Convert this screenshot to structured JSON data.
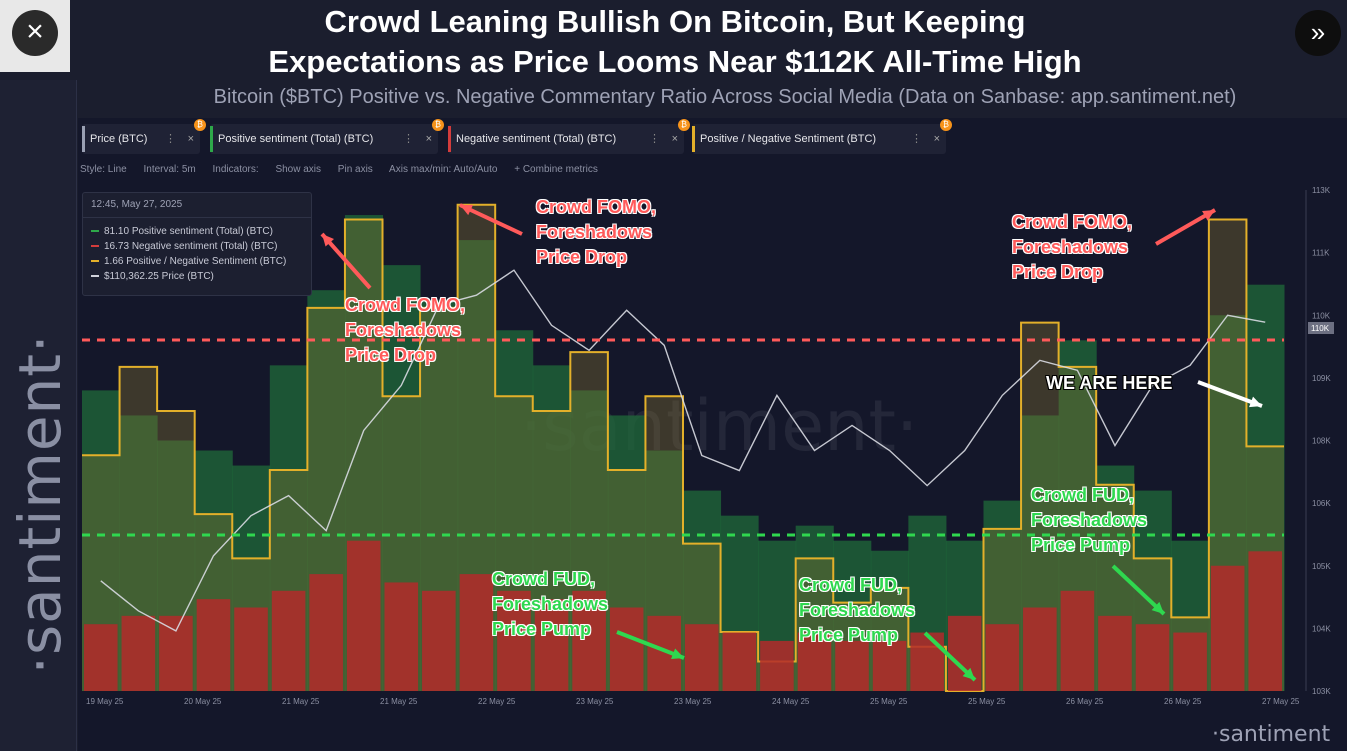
{
  "header": {
    "title_line1": "Crowd Leaning Bullish On Bitcoin, But Keeping",
    "title_line2": "Expectations as Price Looms Near $112K All-Time High",
    "subtitle": "Bitcoin ($BTC) Positive vs. Negative Commentary Ratio Across Social Media (Data on Sanbase: app.santiment.net)",
    "close_icon": "×",
    "next_icon": "»"
  },
  "brand": {
    "vertical": "·santiment·",
    "watermark": "·santiment·",
    "bottom": "·santiment"
  },
  "metric_tabs": [
    {
      "label": "Price (BTC)",
      "color": "#9aa0b3"
    },
    {
      "label": "Positive sentiment (Total) (BTC)",
      "color": "#2ea84a"
    },
    {
      "label": "Negative sentiment (Total) (BTC)",
      "color": "#d43c3c"
    },
    {
      "label": "Positive / Negative Sentiment (BTC)",
      "color": "#e3b02a"
    }
  ],
  "toolbar": {
    "style": "Style: Line",
    "interval": "Interval: 5m",
    "indicators": "Indicators:",
    "show_axis": "Show axis",
    "pin_axis": "Pin axis",
    "axis_maxmin": "Axis max/min: Auto/Auto",
    "combine": "+ Combine metrics"
  },
  "tooltip": {
    "date": "12:45, May 27, 2025",
    "rows": [
      {
        "value": "81.10",
        "label": "Positive sentiment (Total) (BTC)",
        "color": "#2ea84a"
      },
      {
        "value": "16.73",
        "label": "Negative sentiment (Total) (BTC)",
        "color": "#d43c3c"
      },
      {
        "value": "1.66",
        "label": "Positive / Negative Sentiment (BTC)",
        "color": "#e3b02a"
      },
      {
        "value": "$110,362.25",
        "label": "Price (BTC)",
        "color": "#cfd1da"
      }
    ]
  },
  "annotations": {
    "fomo1": [
      "Crowd FOMO,",
      "Foreshadows",
      "Price Drop"
    ],
    "fomo2": [
      "Crowd FOMO,",
      "Foreshadows",
      "Price Drop"
    ],
    "fomo3": [
      "Crowd FOMO,",
      "Foreshadows",
      "Price Drop"
    ],
    "fud1": [
      "Crowd FUD,",
      "Foreshadows",
      "Price Pump"
    ],
    "fud2": [
      "Crowd FUD,",
      "Foreshadows",
      "Price Pump"
    ],
    "fud3": [
      "Crowd FUD,",
      "Foreshadows",
      "Price Pump"
    ],
    "here": "WE ARE HERE"
  },
  "chart_data": {
    "type": "line",
    "x_tick_labels": [
      "19 May 25",
      "20 May 25",
      "21 May 25",
      "21 May 25",
      "22 May 25",
      "23 May 25",
      "23 May 25",
      "24 May 25",
      "25 May 25",
      "25 May 25",
      "26 May 25",
      "26 May 25",
      "27 May 25"
    ],
    "y_tick_labels": [
      "113K",
      "111K",
      "110K",
      "109K",
      "108K",
      "106K",
      "105K",
      "104K",
      "103K"
    ],
    "y_current_label": "110K",
    "price_y_range": [
      103000,
      113000
    ],
    "reference_lines": [
      {
        "color": "#ff5a5a",
        "style": "dashed"
      },
      {
        "color": "#2fd84f",
        "style": "dashed"
      }
    ],
    "series": [
      {
        "name": "Positive / Negative Sentiment (BTC)",
        "color": "#e3b02a",
        "values": [
          1.6,
          2.2,
          1.9,
          1.2,
          0.9,
          1.5,
          2.6,
          3.2,
          2.0,
          2.6,
          3.3,
          2.0,
          1.9,
          2.3,
          1.5,
          2.0,
          1.0,
          0.4,
          0.2,
          0.9,
          0.6,
          0.7,
          0.3,
          0.0,
          1.1,
          2.5,
          2.2,
          1.4,
          0.9,
          0.5,
          3.2,
          1.66
        ]
      },
      {
        "name": "Positive sentiment (Total) (BTC)",
        "color": "#2ea84a",
        "values": [
          60,
          55,
          50,
          48,
          45,
          65,
          80,
          95,
          85,
          78,
          90,
          72,
          65,
          60,
          55,
          48,
          40,
          35,
          30,
          33,
          30,
          28,
          35,
          30,
          38,
          55,
          70,
          45,
          40,
          30,
          75,
          81.1
        ]
      },
      {
        "name": "Negative sentiment (Total) (BTC)",
        "color": "#d43c3c",
        "values": [
          8,
          9,
          9,
          11,
          10,
          12,
          14,
          18,
          13,
          12,
          14,
          12,
          11,
          12,
          10,
          9,
          8,
          7,
          6,
          7,
          6,
          6,
          7,
          9,
          8,
          10,
          12,
          9,
          8,
          7,
          15,
          16.73
        ]
      },
      {
        "name": "Price (BTC)",
        "color": "#d9dbe3",
        "values": [
          105200,
          104600,
          104200,
          105700,
          106500,
          106900,
          106200,
          108200,
          109100,
          110700,
          110900,
          111400,
          110300,
          109800,
          110600,
          109900,
          107700,
          107400,
          108900,
          107800,
          108300,
          107800,
          107100,
          107800,
          108900,
          109600,
          109400,
          107900,
          109100,
          109500,
          110500,
          110362
        ]
      }
    ]
  }
}
